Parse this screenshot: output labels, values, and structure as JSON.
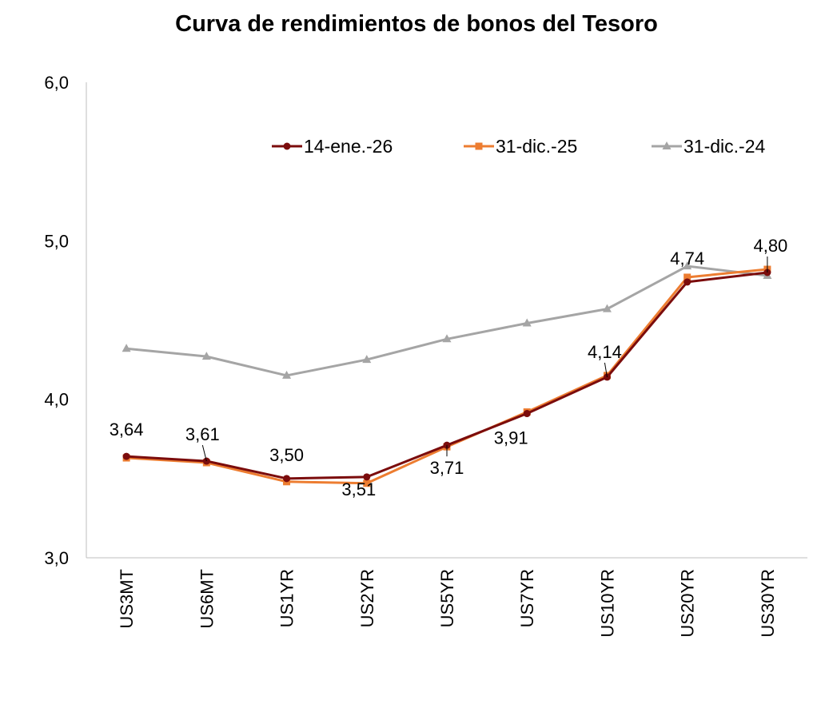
{
  "chart_data": {
    "type": "line",
    "title": "Curva de rendimientos de bonos del Tesoro",
    "categories": [
      "US3MT",
      "US6MT",
      "US1YR",
      "US2YR",
      "US5YR",
      "US7YR",
      "US10YR",
      "US20YR",
      "US30YR"
    ],
    "ylim": [
      3.0,
      6.0
    ],
    "yticks": [
      "3,0",
      "4,0",
      "5,0",
      "6,0"
    ],
    "grid": false,
    "legend_position": "top-right",
    "series": [
      {
        "name": "14-ene.-26",
        "color": "#7b0c0c",
        "marker": "circle",
        "values": [
          3.64,
          3.61,
          3.5,
          3.51,
          3.71,
          3.91,
          4.14,
          4.74,
          4.8
        ],
        "labels": [
          "3,64",
          "3,61",
          "3,50",
          "3,51",
          "3,71",
          "3,91",
          "4,14",
          "4,74",
          "4,80"
        ]
      },
      {
        "name": "31-dic.-25",
        "color": "#ed7d31",
        "marker": "square",
        "values": [
          3.63,
          3.6,
          3.48,
          3.47,
          3.7,
          3.92,
          4.15,
          4.77,
          4.82
        ]
      },
      {
        "name": "31-dic.-24",
        "color": "#a5a5a5",
        "marker": "triangle",
        "values": [
          4.32,
          4.27,
          4.15,
          4.25,
          4.38,
          4.48,
          4.57,
          4.84,
          4.78
        ]
      }
    ]
  }
}
